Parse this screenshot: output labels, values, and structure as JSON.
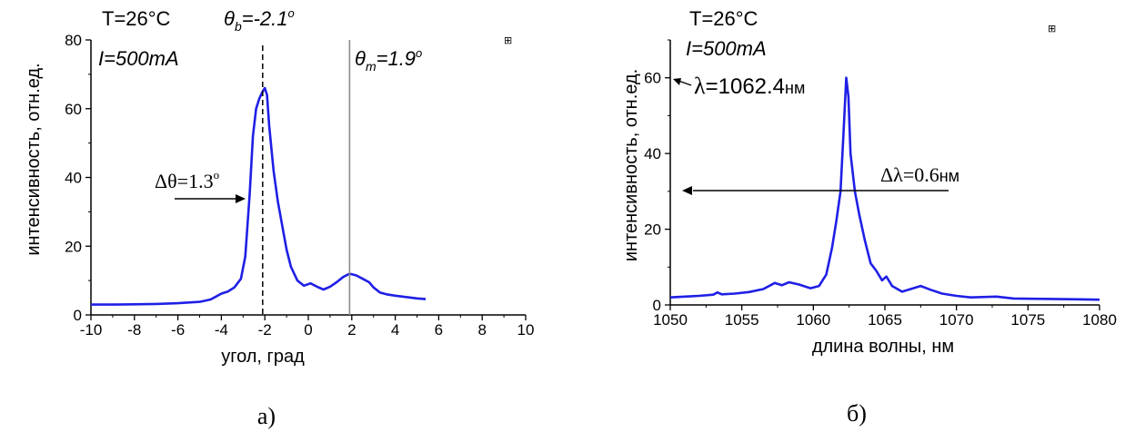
{
  "chart_data": [
    {
      "type": "line",
      "panel_label": "а)",
      "xlabel": "угол, град",
      "ylabel": "интенсивность, отн.ед.",
      "xlim": [
        -10,
        10
      ],
      "ylim": [
        0,
        80
      ],
      "x_ticks": [
        "-10",
        "-8",
        "-6",
        "-4",
        "-2",
        "0",
        "2",
        "4",
        "6",
        "8",
        "10"
      ],
      "y_ticks": [
        "0",
        "20",
        "40",
        "60",
        "80"
      ],
      "conditions": [
        "T=26°C",
        "I=500mA"
      ],
      "annotations": {
        "theta_b": "θb=-2.1°",
        "theta_b_sym": "θ",
        "theta_b_sub": "b",
        "theta_b_val": "=-2.1",
        "theta_b_deg": "o",
        "theta_m_sym": "θ",
        "theta_m_sub": "m",
        "theta_m_val": "=1.9",
        "theta_m_deg": "o",
        "width": "Δθ=1.3°",
        "width_main": "Δθ=1.3",
        "width_deg": "o"
      },
      "vlines": [
        -2.1,
        1.9
      ],
      "series": [
        {
          "color": "#1f1fe6",
          "points": [
            [
              -10,
              3.0
            ],
            [
              -9,
              3.0
            ],
            [
              -8,
              3.1
            ],
            [
              -7,
              3.2
            ],
            [
              -6,
              3.4
            ],
            [
              -5,
              3.8
            ],
            [
              -4.5,
              4.5
            ],
            [
              -4.2,
              5.5
            ],
            [
              -4.0,
              6.2
            ],
            [
              -3.7,
              6.8
            ],
            [
              -3.4,
              8.0
            ],
            [
              -3.1,
              10.5
            ],
            [
              -2.9,
              17
            ],
            [
              -2.7,
              35
            ],
            [
              -2.55,
              52
            ],
            [
              -2.4,
              60
            ],
            [
              -2.25,
              63
            ],
            [
              -2.1,
              65
            ],
            [
              -2.0,
              66
            ],
            [
              -1.9,
              64
            ],
            [
              -1.8,
              55
            ],
            [
              -1.6,
              42
            ],
            [
              -1.4,
              33
            ],
            [
              -1.2,
              26
            ],
            [
              -1.0,
              19
            ],
            [
              -0.8,
              14
            ],
            [
              -0.5,
              10
            ],
            [
              -0.2,
              8.5
            ],
            [
              0.1,
              9.2
            ],
            [
              0.4,
              8.2
            ],
            [
              0.7,
              7.4
            ],
            [
              1.0,
              8.2
            ],
            [
              1.3,
              9.5
            ],
            [
              1.6,
              11
            ],
            [
              1.9,
              12
            ],
            [
              2.2,
              11.5
            ],
            [
              2.5,
              10.5
            ],
            [
              2.8,
              9.5
            ],
            [
              3.0,
              8.0
            ],
            [
              3.3,
              6.5
            ],
            [
              3.6,
              6.0
            ],
            [
              4.0,
              5.6
            ],
            [
              4.5,
              5.2
            ],
            [
              5.0,
              4.8
            ],
            [
              5.4,
              4.6
            ]
          ]
        }
      ]
    },
    {
      "type": "line",
      "panel_label": "б)",
      "xlabel": "длина волны, нм",
      "ylabel": "интенсивность, отн.ед.",
      "xlim": [
        1050,
        1080
      ],
      "ylim": [
        0,
        70
      ],
      "x_ticks": [
        "1050",
        "1055",
        "1060",
        "1065",
        "1070",
        "1075",
        "1080"
      ],
      "y_ticks": [
        "0",
        "20",
        "40",
        "60"
      ],
      "conditions": [
        "T=26°C",
        "I=500mA"
      ],
      "annotations": {
        "peak": "λ=1062.4нм",
        "peak_sym": "λ",
        "peak_val": "=1062.4",
        "peak_unit": "нм",
        "width": "Δλ=0.6нм",
        "width_main": "Δλ=0.6",
        "width_unit": "нм"
      },
      "series": [
        {
          "color": "#1f1fe6",
          "points": [
            [
              1050,
              2.0
            ],
            [
              1051,
              2.2
            ],
            [
              1052,
              2.4
            ],
            [
              1053,
              2.7
            ],
            [
              1053.3,
              3.3
            ],
            [
              1053.6,
              2.8
            ],
            [
              1054.5,
              3.0
            ],
            [
              1055.5,
              3.4
            ],
            [
              1056.5,
              4.2
            ],
            [
              1057.3,
              5.8
            ],
            [
              1057.8,
              5.2
            ],
            [
              1058.3,
              6.0
            ],
            [
              1059,
              5.4
            ],
            [
              1059.8,
              4.4
            ],
            [
              1060.4,
              5.0
            ],
            [
              1060.9,
              8.0
            ],
            [
              1061.3,
              15
            ],
            [
              1061.6,
              22
            ],
            [
              1061.9,
              30
            ],
            [
              1062.1,
              45
            ],
            [
              1062.3,
              60
            ],
            [
              1062.45,
              55
            ],
            [
              1062.6,
              40
            ],
            [
              1062.9,
              30
            ],
            [
              1063.2,
              24
            ],
            [
              1063.6,
              17
            ],
            [
              1064.0,
              11
            ],
            [
              1064.4,
              9.0
            ],
            [
              1064.8,
              6.5
            ],
            [
              1065.1,
              7.5
            ],
            [
              1065.5,
              5.0
            ],
            [
              1066.2,
              3.5
            ],
            [
              1066.8,
              4.2
            ],
            [
              1067.5,
              5.0
            ],
            [
              1068.2,
              4.0
            ],
            [
              1069,
              3.0
            ],
            [
              1070,
              2.4
            ],
            [
              1071,
              2.0
            ],
            [
              1072.8,
              2.2
            ],
            [
              1074,
              1.7
            ],
            [
              1076,
              1.6
            ],
            [
              1078,
              1.5
            ],
            [
              1080,
              1.4
            ]
          ]
        }
      ]
    }
  ]
}
